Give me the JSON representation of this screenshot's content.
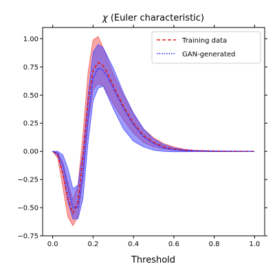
{
  "chart_data": {
    "type": "line",
    "title": "χ (Euler characteristic)",
    "title_symbol": "χ",
    "title_rest": " (Euler characteristic)",
    "xlabel": "Threshold",
    "ylabel": "",
    "xlim": [
      -0.05,
      1.05
    ],
    "ylim": [
      -0.75,
      1.1
    ],
    "x_ticks": [
      0.0,
      0.2,
      0.4,
      0.6,
      0.8,
      1.0
    ],
    "x_tick_labels": [
      "0.0",
      "0.2",
      "0.4",
      "0.6",
      "0.8",
      "1.0"
    ],
    "y_ticks": [
      -0.75,
      -0.5,
      -0.25,
      0.0,
      0.25,
      0.5,
      0.75,
      1.0
    ],
    "y_tick_labels": [
      "−0.75",
      "−0.50",
      "−0.25",
      "0.00",
      "0.25",
      "0.50",
      "0.75",
      "1.00"
    ],
    "grid": false,
    "legend_position": "top-right",
    "x": [
      0.0,
      0.025,
      0.05,
      0.075,
      0.1,
      0.125,
      0.15,
      0.175,
      0.2,
      0.225,
      0.25,
      0.275,
      0.3,
      0.35,
      0.4,
      0.45,
      0.5,
      0.55,
      0.6,
      0.65,
      0.7,
      0.8,
      0.9,
      1.0
    ],
    "series": [
      {
        "name": "Training data",
        "style": "dashed",
        "color": "#e41a1c",
        "band_color": "#f25b5b",
        "mean": [
          0.0,
          -0.03,
          -0.2,
          -0.42,
          -0.55,
          -0.45,
          -0.05,
          0.45,
          0.72,
          0.79,
          0.76,
          0.68,
          0.58,
          0.4,
          0.25,
          0.14,
          0.08,
          0.04,
          0.02,
          0.01,
          0.005,
          0.0,
          0.0,
          0.0
        ],
        "upper": [
          0.0,
          -0.01,
          -0.1,
          -0.27,
          -0.43,
          -0.3,
          0.15,
          0.7,
          0.99,
          1.02,
          0.92,
          0.8,
          0.69,
          0.5,
          0.33,
          0.2,
          0.12,
          0.07,
          0.04,
          0.02,
          0.01,
          0.005,
          0.002,
          0.0
        ],
        "lower": [
          0.0,
          -0.06,
          -0.32,
          -0.58,
          -0.66,
          -0.58,
          -0.25,
          0.25,
          0.55,
          0.6,
          0.58,
          0.5,
          0.42,
          0.28,
          0.16,
          0.08,
          0.04,
          0.02,
          0.01,
          0.004,
          0.0,
          -0.002,
          -0.002,
          0.0
        ]
      },
      {
        "name": "GAN-generated",
        "style": "dotted",
        "color": "#1a1aff",
        "band_color": "#4b4bff",
        "mean": [
          0.0,
          -0.02,
          -0.12,
          -0.32,
          -0.5,
          -0.5,
          -0.2,
          0.3,
          0.65,
          0.74,
          0.72,
          0.65,
          0.56,
          0.38,
          0.24,
          0.13,
          0.07,
          0.03,
          0.015,
          0.008,
          0.004,
          0.0,
          0.0,
          0.0
        ],
        "upper": [
          0.0,
          0.0,
          -0.03,
          -0.15,
          -0.33,
          -0.3,
          0.0,
          0.5,
          0.88,
          0.95,
          0.92,
          0.83,
          0.74,
          0.52,
          0.34,
          0.2,
          0.11,
          0.06,
          0.03,
          0.015,
          0.008,
          0.004,
          0.002,
          0.0
        ],
        "lower": [
          0.0,
          -0.04,
          -0.2,
          -0.45,
          -0.6,
          -0.6,
          -0.42,
          0.08,
          0.45,
          0.56,
          0.58,
          0.48,
          0.38,
          0.2,
          0.09,
          0.04,
          0.01,
          0.0,
          -0.003,
          -0.003,
          -0.002,
          -0.001,
          0.0,
          0.0
        ]
      }
    ]
  }
}
